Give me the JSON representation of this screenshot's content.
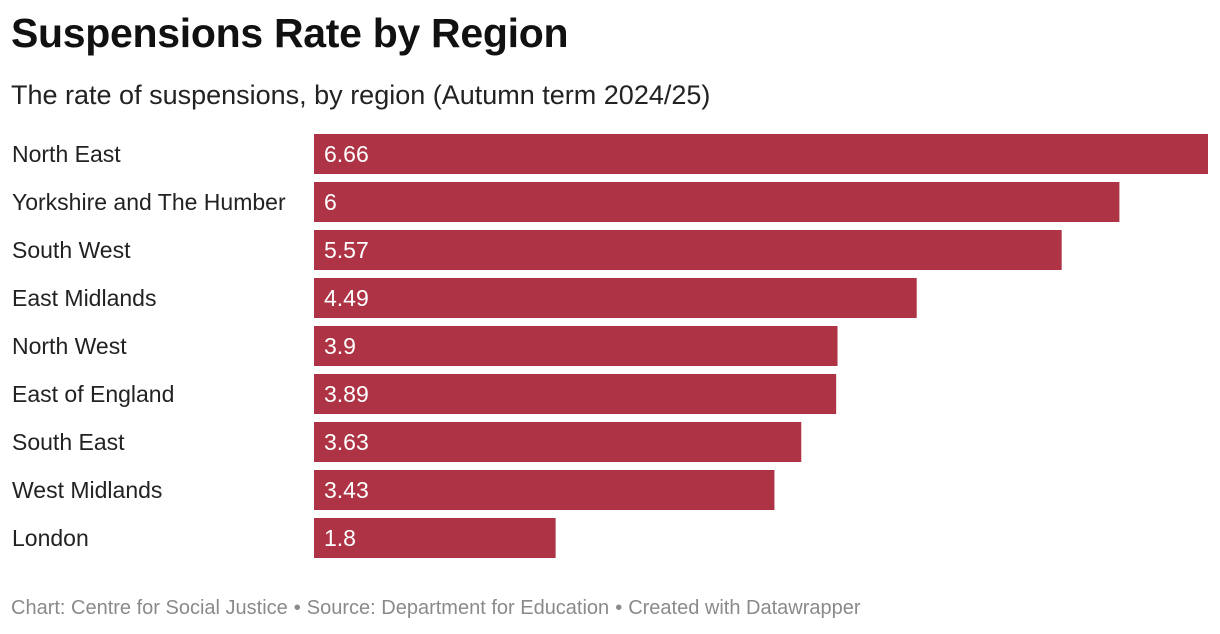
{
  "header": {
    "title": "Suspensions Rate by Region",
    "subtitle": "The rate of suspensions, by region (Autumn term 2024/25)"
  },
  "footer": {
    "chart_credit": "Chart: Centre for Social Justice",
    "separator": "•",
    "source": "Source: Department for Education",
    "created_with": "Created with Datawrapper"
  },
  "colors": {
    "bar": "#ad3345",
    "bar_label": "#ffffff",
    "category_label": "#222222",
    "footer": "#8a8a8a"
  },
  "chart_data": {
    "type": "bar",
    "orientation": "horizontal",
    "title": "Suspensions Rate by Region",
    "subtitle": "The rate of suspensions, by region (Autumn term 2024/25)",
    "categories": [
      "North East",
      "Yorkshire and The Humber",
      "South West",
      "East Midlands",
      "North West",
      "East of England",
      "South East",
      "West Midlands",
      "London"
    ],
    "values": [
      6.66,
      6,
      5.57,
      4.49,
      3.9,
      3.89,
      3.63,
      3.43,
      1.8
    ],
    "value_labels": [
      "6.66",
      "6",
      "5.57",
      "4.49",
      "3.9",
      "3.89",
      "3.63",
      "3.43",
      "1.8"
    ],
    "xlim": [
      0,
      6.66
    ],
    "xlabel": "",
    "ylabel": "",
    "grid": false,
    "legend": "none"
  }
}
